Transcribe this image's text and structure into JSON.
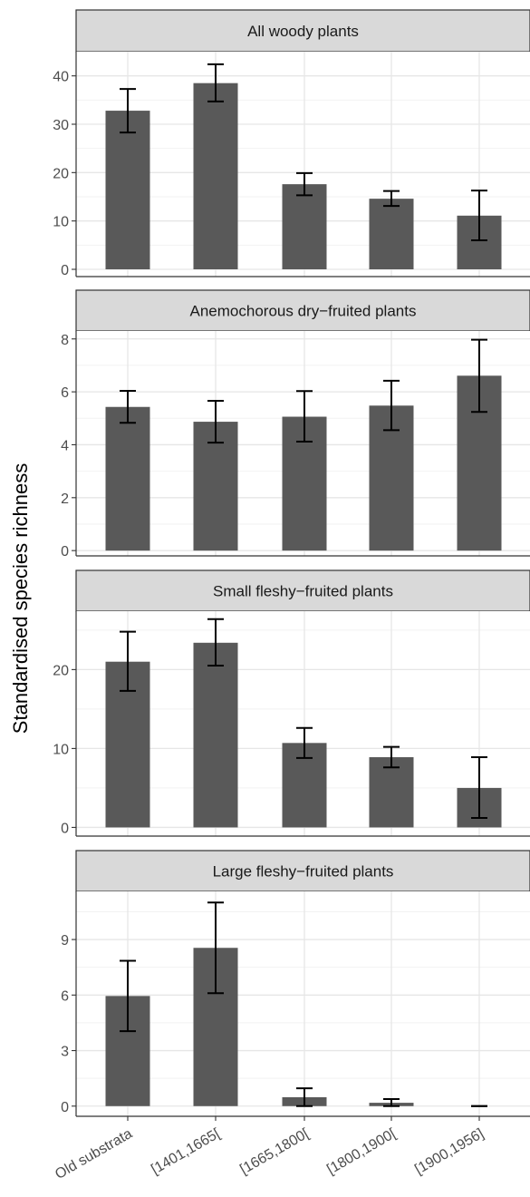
{
  "chart_data": {
    "type": "bar",
    "layout": "faceted-vertical",
    "ylabel": "Standardised species richness",
    "xlabel": "",
    "categories": [
      "Old substrata",
      "[1401,1665[",
      "[1665,1800[",
      "[1800,1900[",
      "[1900,1956]"
    ],
    "grid": true,
    "bar_color": "#595959",
    "strip_color": "#d9d9d9",
    "panels": [
      {
        "title": "All woody plants",
        "ylim": [
          -1.5,
          45
        ],
        "yticks": [
          0,
          10,
          20,
          30,
          40
        ],
        "values": [
          32.8,
          38.5,
          17.6,
          14.6,
          11.1
        ],
        "err_low": [
          28.3,
          34.7,
          15.3,
          13.1,
          6.0
        ],
        "err_high": [
          37.3,
          42.4,
          19.9,
          16.2,
          16.3
        ]
      },
      {
        "title": "Anemochorous dry−fruited plants",
        "ylim": [
          -0.2,
          8.3
        ],
        "yticks": [
          0,
          2,
          4,
          6,
          8
        ],
        "values": [
          5.43,
          4.87,
          5.06,
          5.48,
          6.61
        ],
        "err_low": [
          4.83,
          4.08,
          4.12,
          4.55,
          5.24
        ],
        "err_high": [
          6.04,
          5.66,
          6.03,
          6.42,
          7.97
        ]
      },
      {
        "title": "Small fleshy−fruited plants",
        "ylim": [
          -1.1,
          27.4
        ],
        "yticks": [
          0,
          10,
          20
        ],
        "values": [
          21.0,
          23.4,
          10.7,
          8.9,
          5.0
        ],
        "err_low": [
          17.3,
          20.5,
          8.8,
          7.6,
          1.2
        ],
        "err_high": [
          24.8,
          26.4,
          12.6,
          10.2,
          8.9
        ]
      },
      {
        "title": "Large fleshy−fruited plants",
        "ylim": [
          -0.55,
          11.6
        ],
        "yticks": [
          0,
          3,
          6,
          9
        ],
        "values": [
          5.95,
          8.55,
          0.48,
          0.18,
          0.0
        ],
        "err_low": [
          4.05,
          6.1,
          0.0,
          0.0,
          0.0
        ],
        "err_high": [
          7.85,
          11.0,
          0.96,
          0.38,
          0.0
        ]
      }
    ]
  }
}
